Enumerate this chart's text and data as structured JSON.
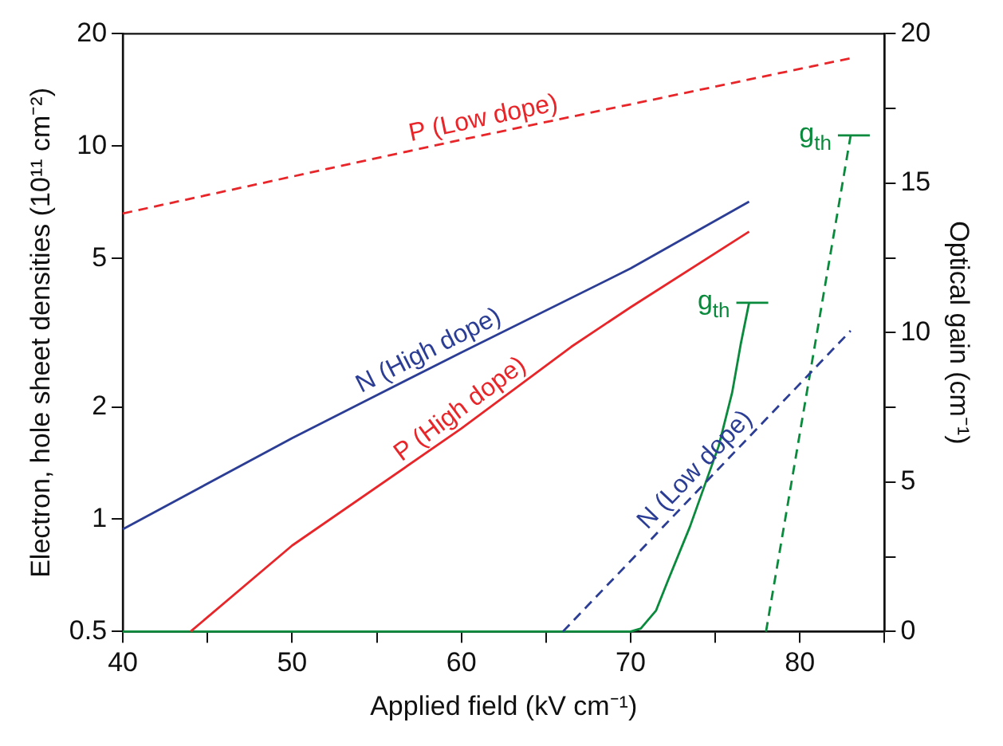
{
  "chart_data": {
    "type": "line",
    "xlabel": "Applied field (kV cm⁻¹)",
    "ylabel": "Electron, hole sheet densities (10¹¹ cm⁻²)",
    "y2label": "Optical gain (cm⁻¹)",
    "log": "y",
    "grid": false,
    "legend": false,
    "marker": "none",
    "xlim": [
      40,
      85
    ],
    "xticks": [
      40,
      {
        "value": 45,
        "label": null
      },
      50,
      {
        "value": 55,
        "label": null
      },
      60,
      {
        "value": 65,
        "label": null
      },
      70,
      {
        "value": 75,
        "label": null
      },
      80,
      {
        "value": 85,
        "label": null
      }
    ],
    "ylim": [
      0.5,
      20
    ],
    "yticks": [
      0.5,
      1,
      2,
      5,
      10,
      20
    ],
    "y2lim": [
      0,
      20
    ],
    "y2ticks": [
      0,
      {
        "value": 2.5,
        "label": null
      },
      5,
      {
        "value": 7.5,
        "label": null
      },
      10,
      {
        "value": 12.5,
        "label": null
      },
      15,
      {
        "value": 17.5,
        "label": null
      },
      20
    ],
    "series": [
      {
        "name": "P (Low dope)",
        "color": "#e8262a",
        "line_style": "dashed",
        "x": [
          40,
          60,
          83
        ],
        "values": [
          6.6,
          10.4,
          17.2
        ]
      },
      {
        "name": "N (High dope)",
        "color": "#2b3d94",
        "line_style": "solid",
        "x": [
          40,
          50,
          60,
          70,
          77
        ],
        "values": [
          0.94,
          1.65,
          2.8,
          4.7,
          7.1
        ]
      },
      {
        "name": "P (High dope)",
        "color": "#e8262a",
        "line_style": "solid",
        "x": [
          44,
          50,
          60,
          66.5,
          70,
          77
        ],
        "values": [
          0.5,
          0.85,
          1.75,
          2.9,
          3.7,
          5.9
        ]
      },
      {
        "name": "N (Low dope)",
        "color": "#2b3d94",
        "line_style": "dashed",
        "x": [
          66,
          83
        ],
        "values": [
          0.5,
          3.2
        ]
      },
      {
        "color": "#0a8a3c",
        "line_style": "solid",
        "axis": "y2",
        "x": [
          40,
          70,
          70.6,
          71.5,
          72.2,
          73.5,
          75.2,
          76,
          76.5,
          77
        ],
        "values": [
          0,
          0,
          0.1,
          0.7,
          1.7,
          3.5,
          6.2,
          8,
          9.6,
          11
        ]
      },
      {
        "color": "#0a8a3c",
        "line_style": "dashed",
        "axis": "y2",
        "x": [
          78,
          83
        ],
        "values": [
          0,
          16.6
        ]
      }
    ],
    "annotations": [
      "g$_{th}$",
      "g$_{th}$"
    ]
  }
}
